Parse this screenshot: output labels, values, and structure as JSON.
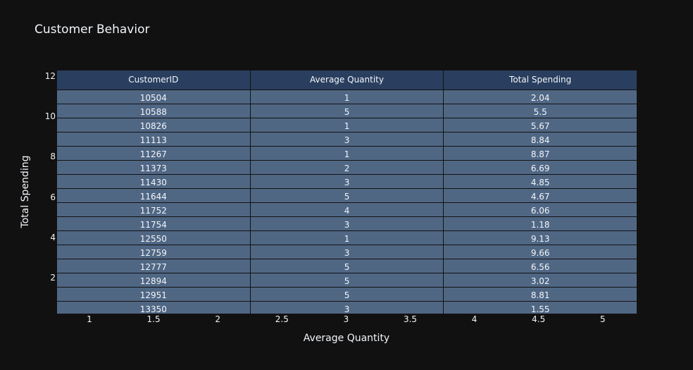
{
  "chart_data": {
    "type": "table",
    "title": "Customer Behavior",
    "xlabel": "Average Quantity",
    "ylabel": "Total Spending",
    "x_ticks": [
      "1",
      "1.5",
      "2",
      "2.5",
      "3",
      "3.5",
      "4",
      "4.5",
      "5"
    ],
    "y_ticks": [
      "2",
      "4",
      "6",
      "8",
      "10",
      "12"
    ],
    "columns": [
      "CustomerID",
      "Average Quantity",
      "Total Spending"
    ],
    "rows": [
      [
        "10504",
        "1",
        "2.04"
      ],
      [
        "10588",
        "5",
        "5.5"
      ],
      [
        "10826",
        "1",
        "5.67"
      ],
      [
        "11113",
        "3",
        "8.84"
      ],
      [
        "11267",
        "1",
        "8.87"
      ],
      [
        "11373",
        "2",
        "6.69"
      ],
      [
        "11430",
        "3",
        "4.85"
      ],
      [
        "11644",
        "5",
        "4.67"
      ],
      [
        "11752",
        "4",
        "6.06"
      ],
      [
        "11754",
        "3",
        "1.18"
      ],
      [
        "12550",
        "1",
        "9.13"
      ],
      [
        "12759",
        "3",
        "9.66"
      ],
      [
        "12777",
        "5",
        "6.56"
      ],
      [
        "12894",
        "5",
        "3.02"
      ],
      [
        "12951",
        "5",
        "8.81"
      ],
      [
        "13350",
        "3",
        "1.55"
      ]
    ],
    "header_color": "#2a3f5f",
    "cell_color": "#506784",
    "background": "#111111",
    "text_color": "#f2f5fa"
  }
}
